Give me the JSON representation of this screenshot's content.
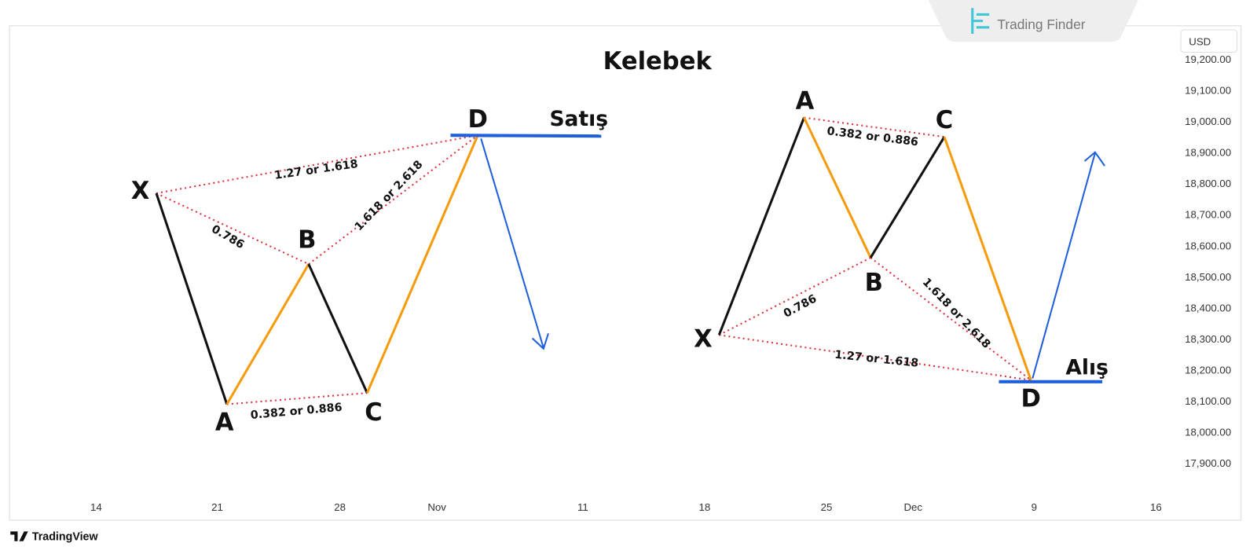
{
  "brand": "Trading Finder",
  "currency": "USD",
  "title": "Kelebek",
  "price_axis": [
    "19,200.00",
    "19,100.00",
    "19,000.00",
    "18,900.00",
    "18,800.00",
    "18,700.00",
    "18,600.00",
    "18,500.00",
    "18,400.00",
    "18,300.00",
    "18,200.00",
    "18,100.00",
    "18,000.00",
    "17,900.00"
  ],
  "time_axis": [
    "14",
    "21",
    "28",
    "Nov",
    "11",
    "18",
    "25",
    "Dec",
    "9",
    "16"
  ],
  "footer": "TradingView",
  "bearish_pattern": {
    "points": [
      "X",
      "A",
      "B",
      "C",
      "D"
    ],
    "ratios": {
      "xd": "1.27 or 1.618",
      "xb": "0.786",
      "bd": "1.618 or 2.618",
      "ac": "0.382 or 0.886"
    },
    "signal": "Satış"
  },
  "bullish_pattern": {
    "points": [
      "X",
      "A",
      "B",
      "C",
      "D"
    ],
    "ratios": {
      "ac": "0.382 or 0.886",
      "xb": "0.786",
      "bd": "1.618 or 2.618",
      "xd": "1.27 or 1.618"
    },
    "signal": "Alış"
  }
}
